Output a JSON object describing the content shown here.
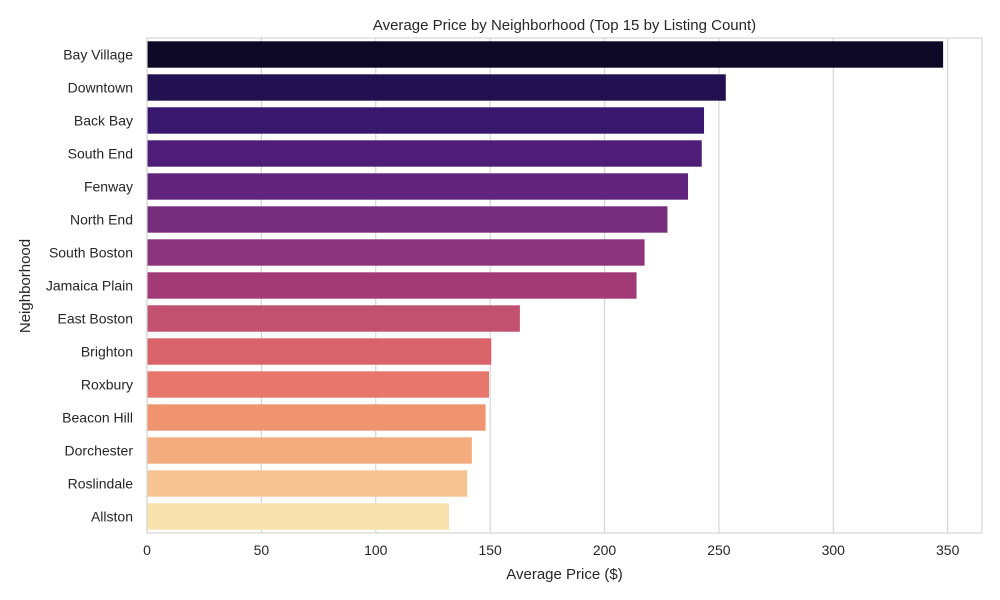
{
  "chart_data": {
    "type": "bar",
    "orientation": "horizontal",
    "title": "Average Price by Neighborhood (Top 15 by Listing Count)",
    "xlabel": "Average Price ($)",
    "ylabel": "Neighborhood",
    "xlim": [
      0,
      365
    ],
    "xticks": [
      0,
      50,
      100,
      150,
      200,
      250,
      300,
      350
    ],
    "grid": "x",
    "categories": [
      "Bay Village",
      "Downtown",
      "Back Bay",
      "South End",
      "Fenway",
      "North End",
      "South Boston",
      "Jamaica Plain",
      "East Boston",
      "Brighton",
      "Roxbury",
      "Beacon Hill",
      "Dorchester",
      "Roslindale",
      "Allston"
    ],
    "values": [
      348,
      253,
      243.5,
      242.5,
      236.5,
      227.5,
      217.5,
      214,
      163,
      150.5,
      149.5,
      148,
      142,
      140,
      132
    ],
    "colors": [
      "#0c0826",
      "#221150",
      "#38186e",
      "#4d1d78",
      "#61247d",
      "#762d7c",
      "#8b337b",
      "#a23a76",
      "#c2506f",
      "#d8636a",
      "#e7766d",
      "#ef946f",
      "#f3ac7e",
      "#f5c492",
      "#f7e1ac"
    ]
  }
}
